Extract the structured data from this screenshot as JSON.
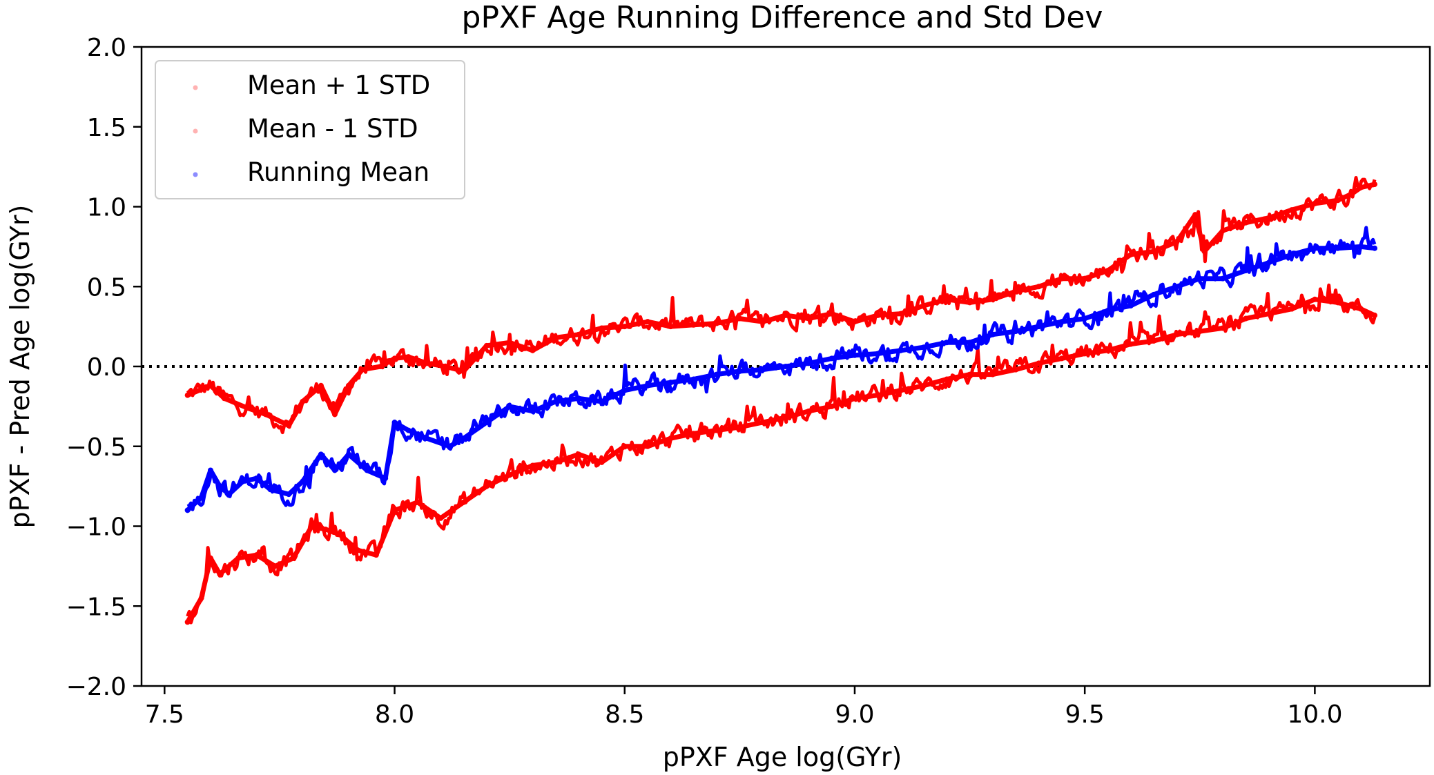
{
  "chart_data": {
    "type": "scatter",
    "title": "pPXF Age Running Difference and Std Dev",
    "xlabel": "pPXF Age log(GYr)",
    "ylabel": "pPXF - Pred Age log(GYr)",
    "xlim": [
      7.45,
      10.25
    ],
    "ylim": [
      -2.0,
      2.0
    ],
    "xticks": [
      "7.5",
      "8.0",
      "8.5",
      "9.0",
      "9.5",
      "10.0"
    ],
    "yticks": [
      "2.0",
      "1.5",
      "1.0",
      "0.5",
      "0.0",
      "−0.5",
      "−1.0",
      "−1.5",
      "−2.0"
    ],
    "reference_line": {
      "y": 0.0,
      "style": "dotted",
      "color": "#000000"
    },
    "legend_position": "upper-left",
    "series": [
      {
        "name": "Mean + 1 STD",
        "color": "#ff0000",
        "x": [
          7.55,
          7.6,
          7.63,
          7.68,
          7.72,
          7.77,
          7.8,
          7.84,
          7.87,
          7.9,
          7.93,
          7.97,
          8.0,
          8.03,
          8.07,
          8.11,
          8.15,
          8.2,
          8.25,
          8.3,
          8.35,
          8.4,
          8.45,
          8.5,
          8.55,
          8.6,
          8.65,
          8.7,
          8.75,
          8.8,
          8.85,
          8.9,
          8.95,
          9.0,
          9.05,
          9.1,
          9.15,
          9.2,
          9.25,
          9.3,
          9.35,
          9.4,
          9.45,
          9.5,
          9.55,
          9.6,
          9.65,
          9.7,
          9.74,
          9.76,
          9.8,
          9.85,
          9.9,
          9.95,
          10.0,
          10.05,
          10.08,
          10.1,
          10.13
        ],
        "values": [
          -0.18,
          -0.12,
          -0.2,
          -0.26,
          -0.3,
          -0.37,
          -0.22,
          -0.12,
          -0.3,
          -0.12,
          -0.02,
          0.0,
          0.05,
          0.06,
          0.02,
          0.0,
          -0.03,
          0.13,
          0.15,
          0.1,
          0.18,
          0.2,
          0.24,
          0.25,
          0.28,
          0.25,
          0.26,
          0.27,
          0.3,
          0.28,
          0.32,
          0.3,
          0.33,
          0.28,
          0.32,
          0.33,
          0.38,
          0.42,
          0.4,
          0.42,
          0.47,
          0.5,
          0.55,
          0.55,
          0.6,
          0.7,
          0.72,
          0.78,
          0.95,
          0.72,
          0.85,
          0.9,
          0.93,
          0.98,
          1.02,
          1.04,
          1.08,
          1.12,
          1.14
        ]
      },
      {
        "name": "Mean - 1 STD",
        "color": "#ff0000",
        "x": [
          7.55,
          7.58,
          7.6,
          7.62,
          7.66,
          7.7,
          7.74,
          7.78,
          7.82,
          7.85,
          7.88,
          7.92,
          7.96,
          8.0,
          8.05,
          8.1,
          8.15,
          8.2,
          8.25,
          8.3,
          8.35,
          8.4,
          8.45,
          8.5,
          8.55,
          8.6,
          8.65,
          8.7,
          8.75,
          8.8,
          8.85,
          8.9,
          8.95,
          9.0,
          9.05,
          9.1,
          9.15,
          9.2,
          9.25,
          9.3,
          9.35,
          9.4,
          9.45,
          9.5,
          9.55,
          9.6,
          9.65,
          9.7,
          9.75,
          9.8,
          9.85,
          9.9,
          9.95,
          10.0,
          10.05,
          10.1,
          10.13
        ],
        "values": [
          -1.6,
          -1.45,
          -1.2,
          -1.3,
          -1.2,
          -1.18,
          -1.25,
          -1.2,
          -1.0,
          -1.02,
          -1.05,
          -1.15,
          -1.18,
          -0.9,
          -0.85,
          -0.95,
          -0.85,
          -0.75,
          -0.68,
          -0.62,
          -0.6,
          -0.55,
          -0.6,
          -0.5,
          -0.5,
          -0.45,
          -0.42,
          -0.4,
          -0.38,
          -0.35,
          -0.32,
          -0.28,
          -0.25,
          -0.2,
          -0.18,
          -0.15,
          -0.12,
          -0.08,
          -0.05,
          -0.05,
          -0.02,
          0.02,
          0.05,
          0.08,
          0.1,
          0.14,
          0.16,
          0.2,
          0.22,
          0.24,
          0.3,
          0.33,
          0.36,
          0.42,
          0.4,
          0.36,
          0.32
        ]
      },
      {
        "name": "Running Mean",
        "color": "#0000ff",
        "x": [
          7.55,
          7.58,
          7.6,
          7.62,
          7.64,
          7.67,
          7.7,
          7.73,
          7.77,
          7.8,
          7.84,
          7.87,
          7.9,
          7.94,
          7.98,
          8.0,
          8.03,
          8.07,
          8.12,
          8.15,
          8.2,
          8.25,
          8.3,
          8.35,
          8.4,
          8.45,
          8.5,
          8.55,
          8.6,
          8.65,
          8.7,
          8.75,
          8.8,
          8.85,
          8.9,
          8.95,
          9.0,
          9.05,
          9.1,
          9.15,
          9.2,
          9.25,
          9.3,
          9.35,
          9.4,
          9.45,
          9.5,
          9.55,
          9.6,
          9.65,
          9.7,
          9.75,
          9.8,
          9.85,
          9.9,
          9.95,
          10.0,
          10.05,
          10.1,
          10.13
        ],
        "values": [
          -0.9,
          -0.82,
          -0.65,
          -0.75,
          -0.8,
          -0.72,
          -0.7,
          -0.77,
          -0.8,
          -0.72,
          -0.55,
          -0.65,
          -0.55,
          -0.65,
          -0.7,
          -0.35,
          -0.4,
          -0.45,
          -0.5,
          -0.45,
          -0.35,
          -0.25,
          -0.28,
          -0.22,
          -0.2,
          -0.22,
          -0.15,
          -0.12,
          -0.1,
          -0.08,
          -0.05,
          -0.03,
          -0.02,
          0.0,
          0.02,
          0.05,
          0.07,
          0.08,
          0.1,
          0.12,
          0.15,
          0.15,
          0.2,
          0.22,
          0.25,
          0.28,
          0.3,
          0.35,
          0.38,
          0.45,
          0.5,
          0.55,
          0.55,
          0.6,
          0.65,
          0.7,
          0.74,
          0.74,
          0.75,
          0.74
        ]
      }
    ]
  }
}
